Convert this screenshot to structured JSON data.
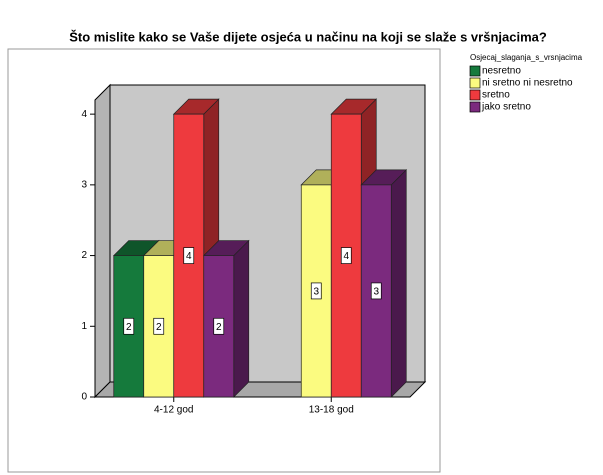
{
  "chart_data": {
    "type": "bar3d",
    "title": "Što mislite kako se Vaše dijete osjeća u načinu na koji se slaže s vršnjacima?",
    "legend_title": "Osjecaj_slaganja_s_vrsnjacima",
    "categories": [
      "4-12 god",
      "13-18 god"
    ],
    "series": [
      {
        "name": "nesretno",
        "color": "#157a3c",
        "values": [
          2,
          null
        ]
      },
      {
        "name": "ni sretno ni nesretno",
        "color": "#fbfb80",
        "values": [
          2,
          3
        ]
      },
      {
        "name": "sretno",
        "color": "#ee3a3e",
        "values": [
          4,
          4
        ]
      },
      {
        "name": "jako sretno",
        "color": "#7b2a7e",
        "values": [
          2,
          3
        ]
      }
    ],
    "ylim": [
      0,
      4.2
    ],
    "yticks": [
      0,
      1,
      2,
      3,
      4
    ],
    "legend": "right"
  }
}
